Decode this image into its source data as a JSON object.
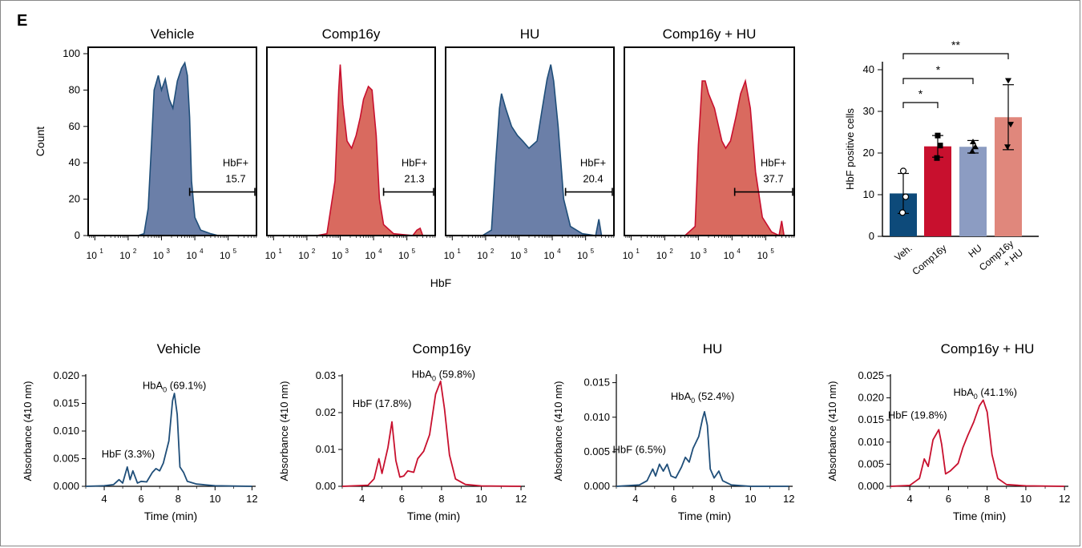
{
  "panel_label": "E",
  "colors": {
    "blue": "#1f4e79",
    "blue_fill": "#6b7fa8",
    "red": "#c8102e",
    "red_fill": "#d96a5f",
    "bar_veh": "#0d4a7a",
    "bar_comp": "#c8102e",
    "bar_hu": "#8c9cc2",
    "bar_combo": "#e0877c"
  },
  "chart_data": [
    {
      "type": "area",
      "title": "Vehicle",
      "ylabel": "Count",
      "xscale": "log",
      "ylim": [
        0,
        100
      ],
      "yticks": [
        "0",
        "20",
        "40",
        "60",
        "80",
        "100"
      ],
      "xticks": [
        "10^1",
        "10^2",
        "10^3",
        "10^4",
        "10^5"
      ],
      "gate": {
        "label": "HbF+",
        "value": "15.7",
        "x_range": [
          7000,
          700000
        ]
      },
      "color": "blue",
      "points": [
        [
          10,
          0
        ],
        [
          200,
          0
        ],
        [
          300,
          1
        ],
        [
          400,
          15
        ],
        [
          500,
          50
        ],
        [
          600,
          80
        ],
        [
          800,
          88
        ],
        [
          1000,
          80
        ],
        [
          1300,
          86
        ],
        [
          1700,
          75
        ],
        [
          2200,
          70
        ],
        [
          3000,
          85
        ],
        [
          4000,
          92
        ],
        [
          5000,
          95
        ],
        [
          6000,
          88
        ],
        [
          7000,
          65
        ],
        [
          8000,
          30
        ],
        [
          10000,
          10
        ],
        [
          15000,
          3
        ],
        [
          30000,
          1
        ],
        [
          50000,
          0
        ],
        [
          700000,
          0
        ]
      ]
    },
    {
      "type": "area",
      "title": "Comp16y",
      "xscale": "log",
      "ylim": [
        0,
        100
      ],
      "xticks": [
        "10^1",
        "10^2",
        "10^3",
        "10^4",
        "10^5"
      ],
      "gate": {
        "label": "HbF+",
        "value": "21.3",
        "x_range": [
          20000,
          700000
        ]
      },
      "color": "red",
      "points": [
        [
          10,
          0
        ],
        [
          200,
          0
        ],
        [
          400,
          1
        ],
        [
          700,
          30
        ],
        [
          900,
          80
        ],
        [
          1000,
          94
        ],
        [
          1200,
          72
        ],
        [
          1600,
          52
        ],
        [
          2200,
          48
        ],
        [
          3000,
          55
        ],
        [
          4000,
          65
        ],
        [
          5000,
          75
        ],
        [
          7000,
          82
        ],
        [
          9000,
          80
        ],
        [
          12000,
          55
        ],
        [
          15000,
          20
        ],
        [
          20000,
          6
        ],
        [
          40000,
          1
        ],
        [
          150000,
          0
        ],
        [
          200000,
          3
        ],
        [
          250000,
          4
        ],
        [
          300000,
          0
        ],
        [
          700000,
          0
        ]
      ]
    },
    {
      "type": "area",
      "title": "HU",
      "xscale": "log",
      "ylim": [
        0,
        100
      ],
      "xticks": [
        "10^1",
        "10^2",
        "10^3",
        "10^4",
        "10^5"
      ],
      "gate": {
        "label": "HbF+",
        "value": "20.4",
        "x_range": [
          25000,
          700000
        ]
      },
      "color": "blue",
      "points": [
        [
          10,
          0
        ],
        [
          80,
          0
        ],
        [
          150,
          3
        ],
        [
          200,
          40
        ],
        [
          260,
          70
        ],
        [
          300,
          78
        ],
        [
          400,
          70
        ],
        [
          600,
          60
        ],
        [
          900,
          55
        ],
        [
          1300,
          52
        ],
        [
          2000,
          48
        ],
        [
          3500,
          52
        ],
        [
          5000,
          70
        ],
        [
          7000,
          86
        ],
        [
          9000,
          94
        ],
        [
          11000,
          85
        ],
        [
          15000,
          60
        ],
        [
          22000,
          20
        ],
        [
          35000,
          5
        ],
        [
          80000,
          1
        ],
        [
          200000,
          0
        ],
        [
          250000,
          9
        ],
        [
          300000,
          0
        ],
        [
          700000,
          0
        ]
      ]
    },
    {
      "type": "area",
      "title": "Comp16y + HU",
      "xscale": "log",
      "ylim": [
        0,
        100
      ],
      "xticks": [
        "10^1",
        "10^2",
        "10^3",
        "10^4",
        "10^5"
      ],
      "gate": {
        "label": "HbF+",
        "value": "37.7",
        "x_range": [
          12000,
          700000
        ]
      },
      "color": "red",
      "points": [
        [
          10,
          0
        ],
        [
          400,
          0
        ],
        [
          800,
          5
        ],
        [
          1000,
          50
        ],
        [
          1300,
          85
        ],
        [
          1600,
          85
        ],
        [
          2000,
          78
        ],
        [
          3000,
          70
        ],
        [
          5000,
          52
        ],
        [
          6500,
          48
        ],
        [
          9000,
          52
        ],
        [
          13000,
          65
        ],
        [
          18000,
          78
        ],
        [
          25000,
          85
        ],
        [
          35000,
          70
        ],
        [
          50000,
          35
        ],
        [
          80000,
          10
        ],
        [
          150000,
          2
        ],
        [
          250000,
          0
        ],
        [
          300000,
          8
        ],
        [
          350000,
          0
        ],
        [
          700000,
          0
        ]
      ]
    },
    {
      "type": "bar",
      "ylabel": "HbF positive cells",
      "ylim": [
        0,
        40
      ],
      "yticks": [
        "0",
        "10",
        "20",
        "30",
        "40"
      ],
      "categories": [
        "Veh.",
        "Comp16y",
        "HU",
        "Comp16y + HU"
      ],
      "values": [
        10.3,
        21.6,
        21.5,
        28.6
      ],
      "errors": [
        4.8,
        2.6,
        1.5,
        7.8
      ],
      "points": [
        [
          15.7,
          5.7,
          9.5
        ],
        [
          24.2,
          18.8,
          21.8
        ],
        [
          22.7,
          20.4,
          21.5
        ],
        [
          37.4,
          21.5,
          26.9
        ]
      ],
      "colors": [
        "bar_veh",
        "bar_comp",
        "bar_hu",
        "bar_combo"
      ],
      "significance": [
        {
          "from": 0,
          "to": 1,
          "label": "*"
        },
        {
          "from": 0,
          "to": 2,
          "label": "*"
        },
        {
          "from": 0,
          "to": 3,
          "label": "**"
        }
      ]
    },
    {
      "type": "line",
      "title": "Vehicle",
      "xlabel": "Time (min)",
      "ylabel": "Absorbance (410 nm)",
      "xlim": [
        3,
        12.2
      ],
      "xticks": [
        "4",
        "6",
        "8",
        "10",
        "12"
      ],
      "ylim": [
        0,
        0.02
      ],
      "yticks": [
        "0.000",
        "0.005",
        "0.010",
        "0.015",
        "0.020"
      ],
      "color": "blue",
      "annotations": [
        {
          "text": "HbF (3.3%)",
          "x": 5.3,
          "y": 0.0052
        },
        {
          "text": "HbA0 (69.1%)",
          "x": 7.8,
          "y": 0.0176
        }
      ],
      "points": [
        [
          3,
          0
        ],
        [
          4,
          0.0001
        ],
        [
          4.5,
          0.0003
        ],
        [
          4.8,
          0.0012
        ],
        [
          5.0,
          0.0006
        ],
        [
          5.25,
          0.0035
        ],
        [
          5.4,
          0.0012
        ],
        [
          5.55,
          0.0028
        ],
        [
          5.8,
          0.0006
        ],
        [
          6.0,
          0.0009
        ],
        [
          6.3,
          0.0008
        ],
        [
          6.6,
          0.0025
        ],
        [
          6.8,
          0.0032
        ],
        [
          7.0,
          0.0028
        ],
        [
          7.2,
          0.0042
        ],
        [
          7.5,
          0.0082
        ],
        [
          7.7,
          0.0155
        ],
        [
          7.8,
          0.0168
        ],
        [
          7.95,
          0.013
        ],
        [
          8.1,
          0.0035
        ],
        [
          8.3,
          0.0025
        ],
        [
          8.5,
          0.0009
        ],
        [
          9,
          0.0004
        ],
        [
          10,
          0.0001
        ],
        [
          12,
          0
        ]
      ]
    },
    {
      "type": "line",
      "title": "Comp16y",
      "xlabel": "Time (min)",
      "ylabel": "Absorbance (410 nm)",
      "xlim": [
        3,
        12.2
      ],
      "xticks": [
        "4",
        "6",
        "8",
        "10",
        "12"
      ],
      "ylim": [
        0,
        0.03
      ],
      "yticks": [
        "0.00",
        "0.01",
        "0.02",
        "0.03"
      ],
      "color": "red",
      "annotations": [
        {
          "text": "HbF (17.8%)",
          "x": 5.0,
          "y": 0.0215
        },
        {
          "text": "HbA0 (59.8%)",
          "x": 8.1,
          "y": 0.0295
        }
      ],
      "points": [
        [
          3,
          0
        ],
        [
          4.3,
          0.0003
        ],
        [
          4.6,
          0.002
        ],
        [
          4.85,
          0.0075
        ],
        [
          5.0,
          0.0035
        ],
        [
          5.3,
          0.0105
        ],
        [
          5.5,
          0.0175
        ],
        [
          5.7,
          0.007
        ],
        [
          5.9,
          0.0025
        ],
        [
          6.1,
          0.0028
        ],
        [
          6.3,
          0.0042
        ],
        [
          6.6,
          0.0038
        ],
        [
          6.8,
          0.0075
        ],
        [
          7.1,
          0.0095
        ],
        [
          7.4,
          0.014
        ],
        [
          7.7,
          0.025
        ],
        [
          7.95,
          0.0285
        ],
        [
          8.15,
          0.021
        ],
        [
          8.4,
          0.0085
        ],
        [
          8.7,
          0.002
        ],
        [
          9.2,
          0.0005
        ],
        [
          10,
          0.0001
        ],
        [
          12,
          0
        ]
      ]
    },
    {
      "type": "line",
      "title": "HU",
      "xlabel": "Time (min)",
      "ylabel": "Absorbance (410 nm)",
      "xlim": [
        3,
        12.2
      ],
      "xticks": [
        "4",
        "6",
        "8",
        "10",
        "12"
      ],
      "ylim": [
        0,
        0.016
      ],
      "yticks": [
        "0.000",
        "0.005",
        "0.010",
        "0.015"
      ],
      "color": "blue",
      "annotations": [
        {
          "text": "HbF (6.5%)",
          "x": 4.2,
          "y": 0.0048
        },
        {
          "text": "HbA0 (52.4%)",
          "x": 7.5,
          "y": 0.0125
        }
      ],
      "points": [
        [
          3,
          0
        ],
        [
          4.2,
          0.0002
        ],
        [
          4.6,
          0.0008
        ],
        [
          4.9,
          0.0025
        ],
        [
          5.05,
          0.0015
        ],
        [
          5.25,
          0.0032
        ],
        [
          5.45,
          0.0022
        ],
        [
          5.65,
          0.0032
        ],
        [
          5.85,
          0.0015
        ],
        [
          6.1,
          0.0012
        ],
        [
          6.4,
          0.0028
        ],
        [
          6.6,
          0.0042
        ],
        [
          6.8,
          0.0035
        ],
        [
          7.0,
          0.0055
        ],
        [
          7.3,
          0.0072
        ],
        [
          7.5,
          0.0098
        ],
        [
          7.6,
          0.0108
        ],
        [
          7.75,
          0.0088
        ],
        [
          7.9,
          0.0025
        ],
        [
          8.1,
          0.0012
        ],
        [
          8.35,
          0.0022
        ],
        [
          8.55,
          0.0008
        ],
        [
          9,
          0.0002
        ],
        [
          10,
          0
        ],
        [
          12,
          0
        ]
      ]
    },
    {
      "type": "line",
      "title": "Comp16y + HU",
      "xlabel": "Time (min)",
      "ylabel": "Absorbance (410 nm)",
      "xlim": [
        3,
        12.2
      ],
      "xticks": [
        "4",
        "6",
        "8",
        "10",
        "12"
      ],
      "ylim": [
        0,
        0.025
      ],
      "yticks": [
        "0.000",
        "0.005",
        "0.010",
        "0.015",
        "0.020",
        "0.025"
      ],
      "color": "red",
      "annotations": [
        {
          "text": "HbF (19.8%)",
          "x": 4.4,
          "y": 0.0153
        },
        {
          "text": "HbA0 (41.1%)",
          "x": 7.9,
          "y": 0.0205
        }
      ],
      "points": [
        [
          3,
          0
        ],
        [
          4.0,
          0.0002
        ],
        [
          4.5,
          0.0018
        ],
        [
          4.75,
          0.0062
        ],
        [
          4.95,
          0.0045
        ],
        [
          5.2,
          0.0105
        ],
        [
          5.5,
          0.0128
        ],
        [
          5.65,
          0.0095
        ],
        [
          5.85,
          0.0028
        ],
        [
          6.1,
          0.0035
        ],
        [
          6.5,
          0.0052
        ],
        [
          6.75,
          0.0088
        ],
        [
          7.0,
          0.0115
        ],
        [
          7.3,
          0.0145
        ],
        [
          7.6,
          0.0182
        ],
        [
          7.8,
          0.0195
        ],
        [
          8.0,
          0.0168
        ],
        [
          8.25,
          0.0072
        ],
        [
          8.55,
          0.0018
        ],
        [
          9,
          0.0004
        ],
        [
          10,
          0.0001
        ],
        [
          12,
          0
        ]
      ]
    }
  ],
  "shared_labels": {
    "flow_xlabel": "HbF"
  }
}
